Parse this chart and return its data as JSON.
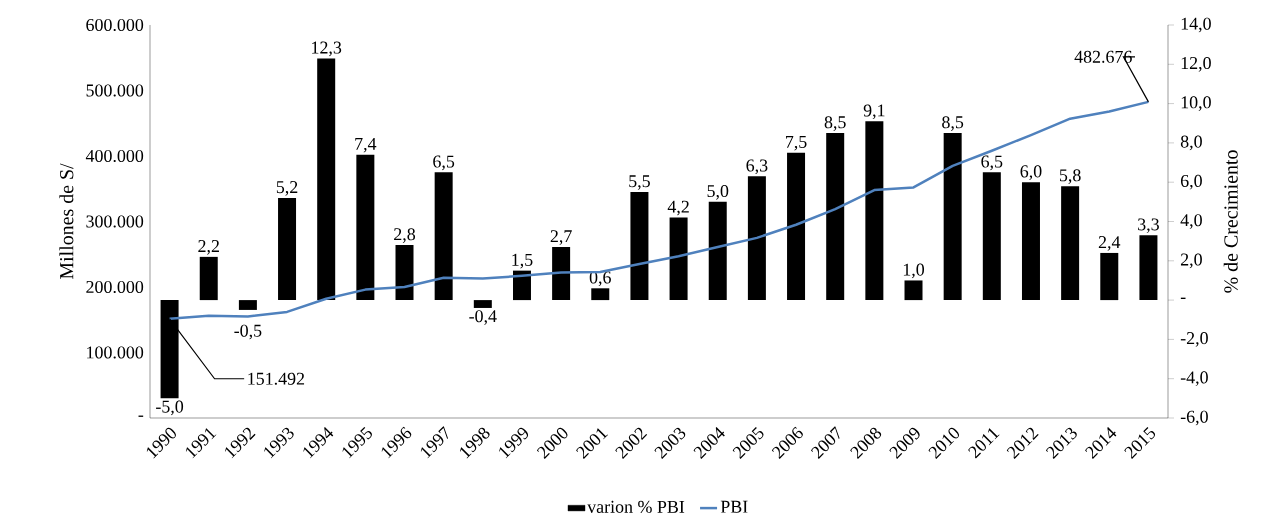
{
  "chart_data": {
    "type": "bar",
    "ylabel": "Millones de S/",
    "y2label": "% de Crecimiento",
    "categories": [
      "1990",
      "1991",
      "1992",
      "1993",
      "1994",
      "1995",
      "1996",
      "1997",
      "1998",
      "1999",
      "2000",
      "2001",
      "2002",
      "2003",
      "2004",
      "2005",
      "2006",
      "2007",
      "2008",
      "2009",
      "2010",
      "2011",
      "2012",
      "2013",
      "2014",
      "2015"
    ],
    "series": [
      {
        "name": "varion % PBI",
        "axis": "y2",
        "color": "#000000",
        "values": [
          -5.0,
          2.2,
          -0.5,
          5.2,
          12.3,
          7.4,
          2.8,
          6.5,
          -0.4,
          1.5,
          2.7,
          0.6,
          5.5,
          4.2,
          5.0,
          6.3,
          7.5,
          8.5,
          9.1,
          1.0,
          8.5,
          6.5,
          6.0,
          5.8,
          2.4,
          3.3
        ],
        "value_labels": [
          "-5,0",
          "2,2",
          "-0,5",
          "5,2",
          "12,3",
          "7,4",
          "2,8",
          "6,5",
          "-0,4",
          "1,5",
          "2,7",
          "0,6",
          "5,5",
          "4,2",
          "5,0",
          "6,3",
          "7,5",
          "8,5",
          "9,1",
          "1,0",
          "8,5",
          "6,5",
          "6,0",
          "5,8",
          "2,4",
          "3,3"
        ]
      },
      {
        "name": "PBI",
        "type": "line",
        "axis": "y",
        "color": "#4f81bd",
        "values": [
          151492,
          156000,
          155000,
          162000,
          182000,
          196000,
          200000,
          214000,
          213000,
          217000,
          222000,
          223000,
          235000,
          247000,
          261000,
          275000,
          295000,
          319000,
          348000,
          352000,
          385000,
          408000,
          432000,
          457000,
          468000,
          482676
        ],
        "value_labels": [
          "151.492",
          null,
          null,
          null,
          null,
          null,
          null,
          null,
          null,
          null,
          null,
          null,
          null,
          null,
          null,
          null,
          null,
          null,
          null,
          null,
          null,
          null,
          null,
          null,
          null,
          "482.676"
        ]
      }
    ],
    "ylim": [
      0,
      600000
    ],
    "yticks": [
      {
        "value": 0,
        "label": "-"
      },
      {
        "value": 100000,
        "label": "100.000"
      },
      {
        "value": 200000,
        "label": "200.000"
      },
      {
        "value": 300000,
        "label": "300.000"
      },
      {
        "value": 400000,
        "label": "400.000"
      },
      {
        "value": 500000,
        "label": "500.000"
      },
      {
        "value": 600000,
        "label": "600.000"
      }
    ],
    "y2lim": [
      -6,
      14
    ],
    "y2ticks": [
      {
        "value": -6,
        "label": "-6,0"
      },
      {
        "value": -4,
        "label": "-4,0"
      },
      {
        "value": -2,
        "label": "-2,0"
      },
      {
        "value": 0,
        "label": "-"
      },
      {
        "value": 2,
        "label": "2,0"
      },
      {
        "value": 4,
        "label": "4,0"
      },
      {
        "value": 6,
        "label": "6,0"
      },
      {
        "value": 8,
        "label": "8,0"
      },
      {
        "value": 10,
        "label": "10,0"
      },
      {
        "value": 12,
        "label": "12,0"
      },
      {
        "value": 14,
        "label": "14,0"
      }
    ],
    "grid": false,
    "legend": "bottom",
    "marker": "none",
    "line_style": "solid"
  }
}
